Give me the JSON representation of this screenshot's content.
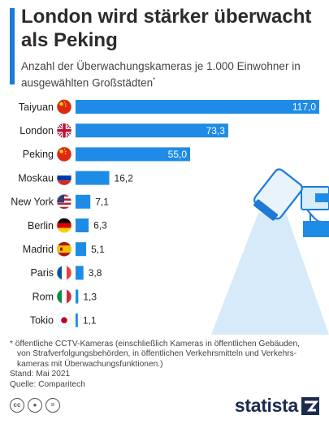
{
  "title": "London wird stärker überwacht als Peking",
  "subtitle": "Anzahl der Überwachungskameras je 1.000 Einwohner in ausgewählten Großstädten",
  "subtitle_marker": "*",
  "colors": {
    "bar": "#1e8ce6",
    "accent": "#1e7ad6",
    "brand": "#1d2b4f"
  },
  "chart_data": {
    "type": "bar",
    "orientation": "horizontal",
    "categories": [
      "Taiyuan",
      "London",
      "Peking",
      "Moskau",
      "New York",
      "Berlin",
      "Madrid",
      "Paris",
      "Rom",
      "Tokio"
    ],
    "values": [
      117.0,
      73.3,
      55.0,
      16.2,
      7.1,
      6.3,
      5.1,
      3.8,
      1.3,
      1.1
    ],
    "value_labels": [
      "117,0",
      "73,3",
      "55,0",
      "16,2",
      "7,1",
      "6,3",
      "5,1",
      "3,8",
      "1,3",
      "1,1"
    ],
    "flags": [
      "china-flag-icon",
      "uk-flag-icon",
      "china-flag-icon",
      "russia-flag-icon",
      "usa-flag-icon",
      "germany-flag-icon",
      "spain-flag-icon",
      "france-flag-icon",
      "italy-flag-icon",
      "japan-flag-icon"
    ],
    "xlim": [
      0,
      117
    ],
    "grid": false,
    "legend": "none"
  },
  "footnote": {
    "line1": "* öffentliche CCTV-Kameras (einschließlich Kameras in öffentlichen Gebäuden,",
    "line2": "von Strafverfolgungsbehörden, in öffentlichen Verkehrsmitteln und Verkehrs-",
    "line3": "kameras mit Überwachungsfunktionen.)",
    "stand": "Stand: Mai 2021",
    "quelle": "Quelle: Comparitech"
  },
  "brand": {
    "name": "statista"
  },
  "license_icons": [
    "cc-icon",
    "by-icon",
    "nd-icon"
  ]
}
